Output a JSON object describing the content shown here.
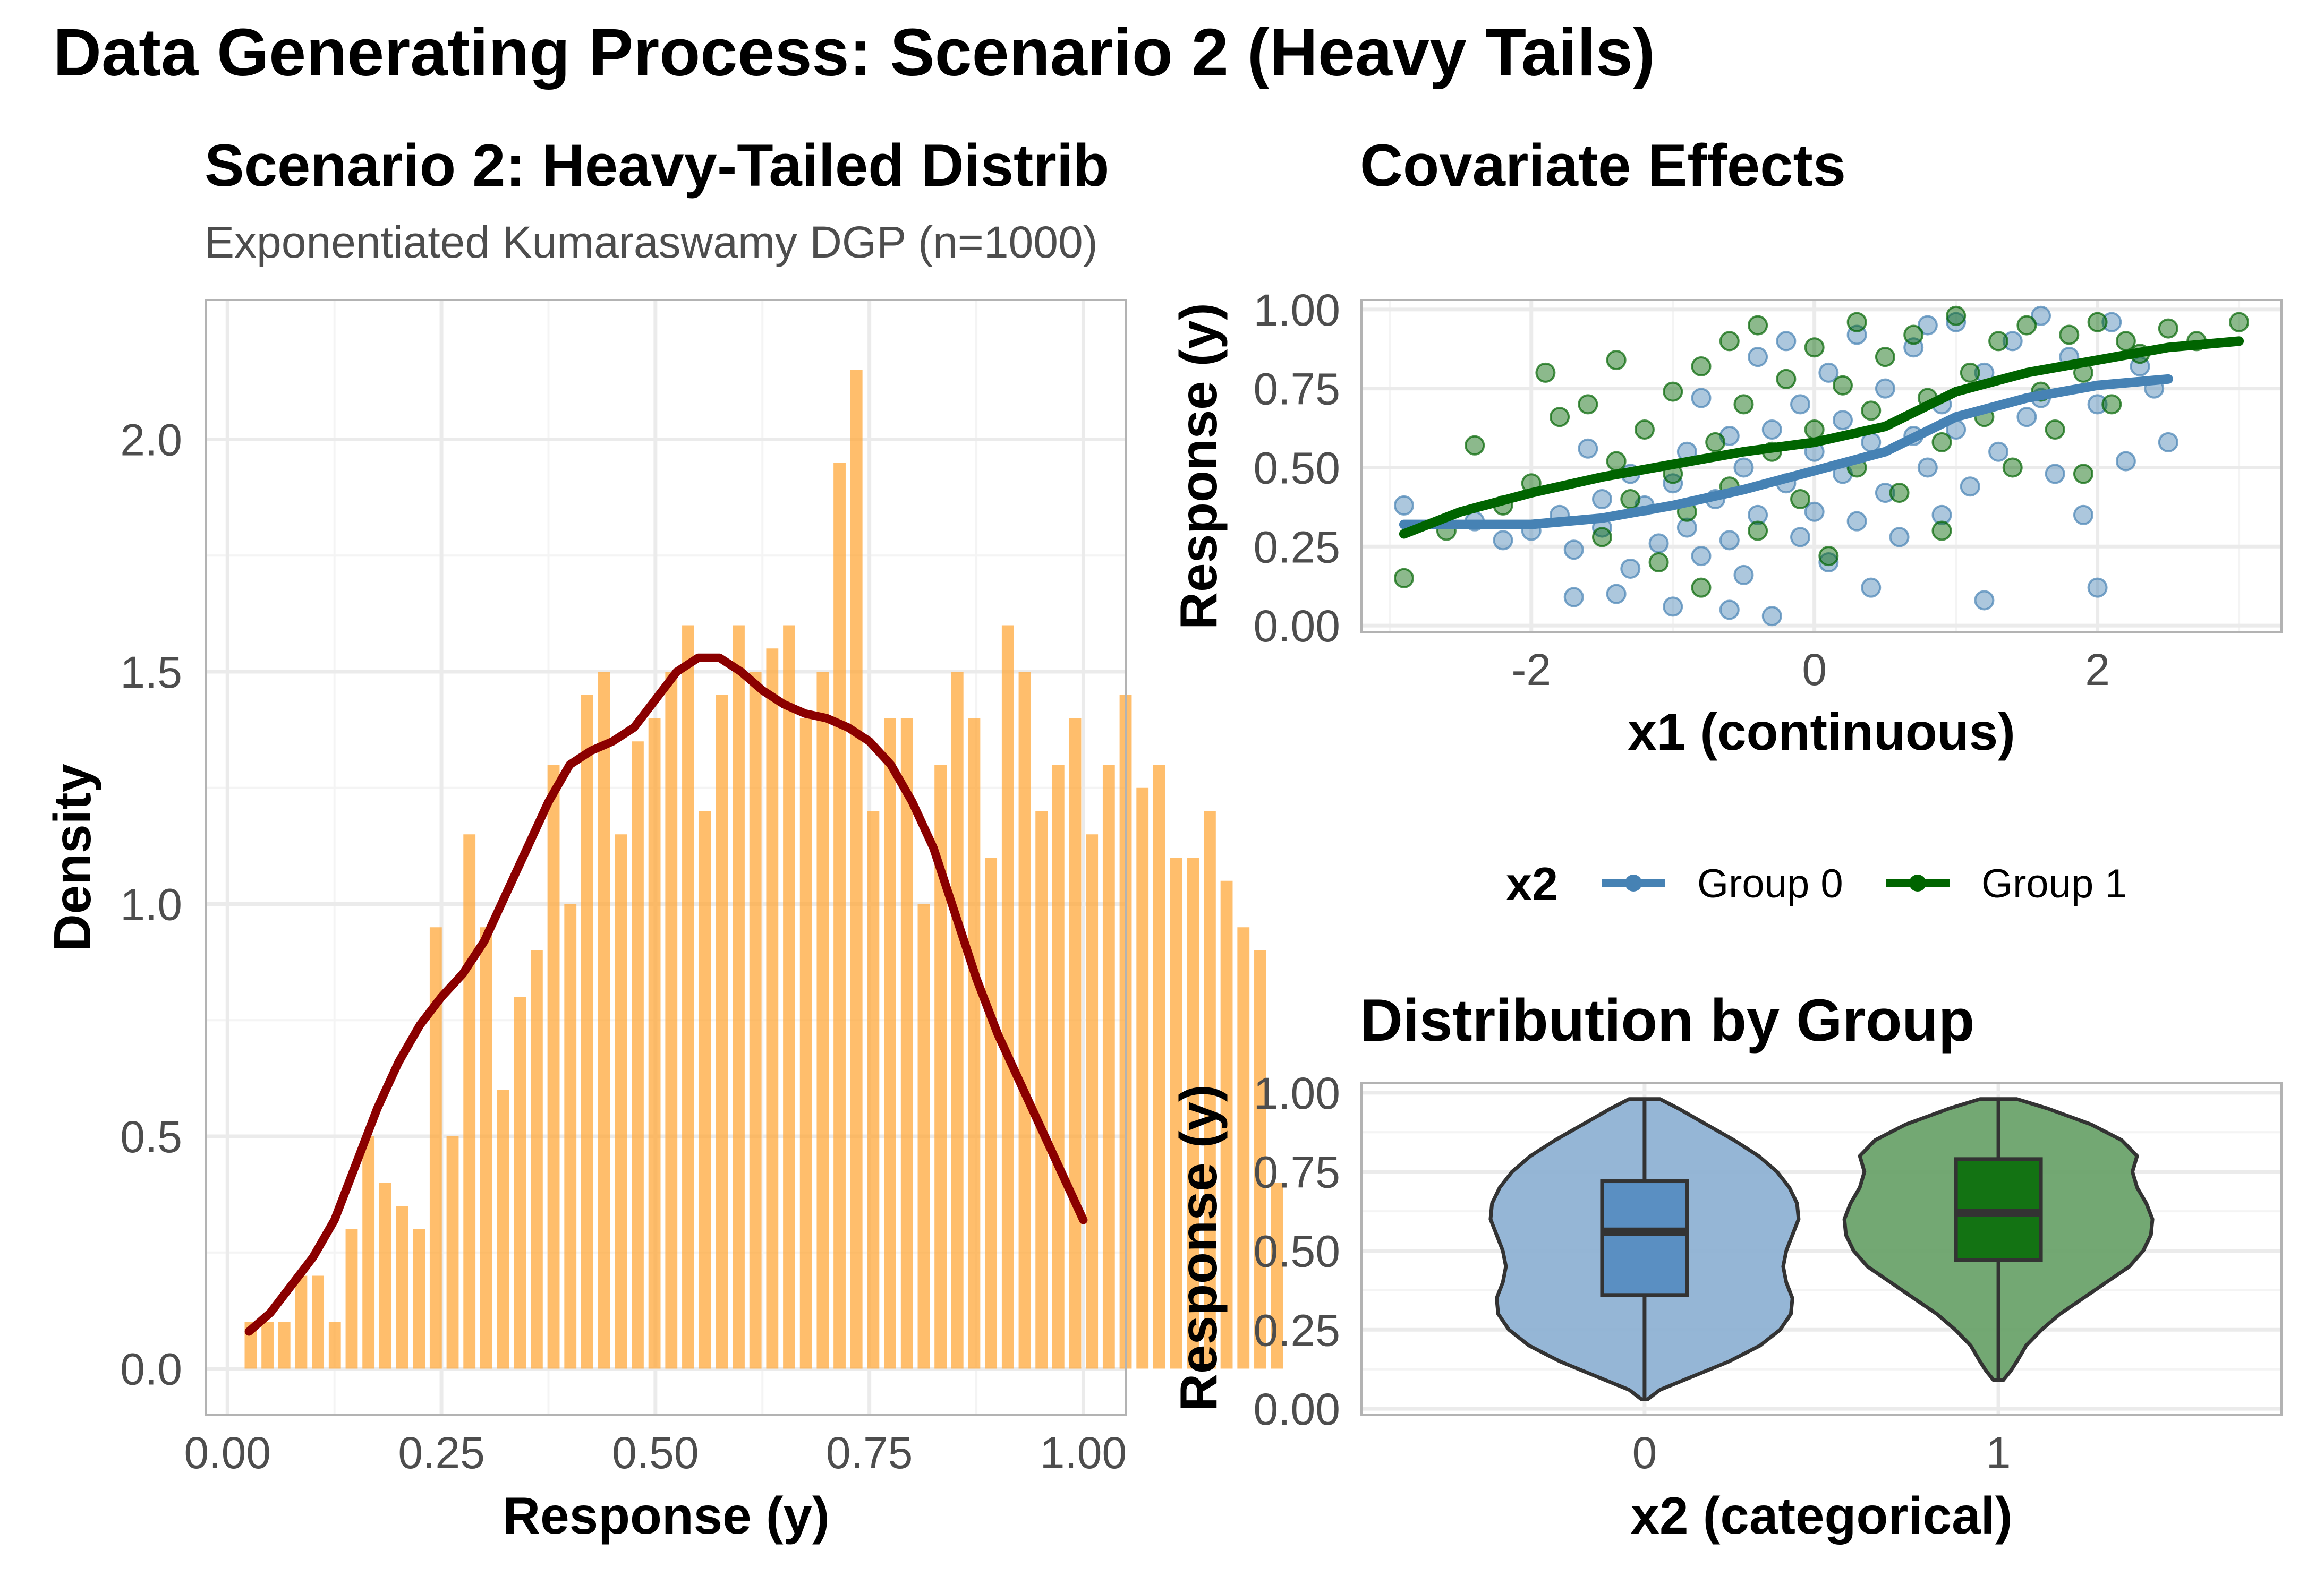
{
  "title": "Data Generating Process: Scenario 2 (Heavy Tails)",
  "chart_data": [
    {
      "type": "bar",
      "panel": "histogram",
      "title": "Scenario 2: Heavy-Tailed Distrib",
      "subtitle": "Exponentiated Kumaraswamy DGP (n=1000)",
      "xlabel": "Response (y)",
      "ylabel": "Density",
      "xlim": [
        -0.025,
        1.05
      ],
      "ylim": [
        -0.1,
        2.3
      ],
      "x_ticks": [
        0,
        0.25,
        0.5,
        0.75,
        1
      ],
      "x_tick_labels": [
        "0.00",
        "0.25",
        "0.50",
        "0.75",
        "1.00"
      ],
      "y_ticks": [
        0,
        0.5,
        1,
        1.5,
        2
      ],
      "y_tick_labels": [
        "0.0",
        "0.5",
        "1.0",
        "1.5",
        "2.0"
      ],
      "bar_color": "#ffa533",
      "curve_color": "#8b0000",
      "bins_start": 0.02,
      "bin_width": 0.01966,
      "values": [
        0.1,
        0.1,
        0.1,
        0.2,
        0.2,
        0.1,
        0.3,
        0.5,
        0.4,
        0.35,
        0.3,
        0.95,
        0.5,
        1.15,
        0.95,
        0.6,
        0.8,
        0.9,
        1.3,
        1.0,
        1.45,
        1.5,
        1.15,
        1.35,
        1.4,
        1.5,
        1.6,
        1.2,
        1.45,
        1.6,
        1.5,
        1.55,
        1.6,
        1.4,
        1.5,
        1.95,
        2.15,
        1.2,
        1.4,
        1.4,
        1.0,
        1.3,
        1.5,
        1.4,
        1.1,
        1.6,
        1.5,
        1.2,
        1.3,
        1.4,
        1.15,
        1.3,
        1.45,
        1.25,
        1.3,
        1.1,
        1.1,
        1.2,
        1.05,
        0.95,
        0.9,
        0.4
      ],
      "density_x": [
        0.025,
        0.05,
        0.075,
        0.1,
        0.125,
        0.15,
        0.175,
        0.2,
        0.225,
        0.25,
        0.275,
        0.3,
        0.325,
        0.35,
        0.375,
        0.4,
        0.425,
        0.45,
        0.475,
        0.5,
        0.525,
        0.55,
        0.575,
        0.6,
        0.625,
        0.65,
        0.675,
        0.7,
        0.725,
        0.75,
        0.775,
        0.8,
        0.825,
        0.85,
        0.875,
        0.9,
        0.925,
        0.95,
        0.975,
        1.0
      ],
      "density_y": [
        0.08,
        0.12,
        0.18,
        0.24,
        0.32,
        0.44,
        0.56,
        0.66,
        0.74,
        0.8,
        0.85,
        0.92,
        1.02,
        1.12,
        1.22,
        1.3,
        1.33,
        1.35,
        1.38,
        1.44,
        1.5,
        1.53,
        1.53,
        1.5,
        1.46,
        1.43,
        1.41,
        1.4,
        1.38,
        1.35,
        1.3,
        1.22,
        1.12,
        0.98,
        0.84,
        0.72,
        0.62,
        0.52,
        0.42,
        0.32
      ]
    },
    {
      "type": "scatter",
      "panel": "covariate-effects",
      "title": "Covariate Effects",
      "xlabel": "x1 (continuous)",
      "ylabel": "Response (y)",
      "xlim": [
        -3.2,
        3.3
      ],
      "ylim": [
        -0.02,
        1.03
      ],
      "x_ticks": [
        -2,
        0,
        2
      ],
      "x_tick_labels": [
        "-2",
        "0",
        "2"
      ],
      "y_ticks": [
        0,
        0.25,
        0.5,
        0.75,
        1
      ],
      "y_tick_labels": [
        "0.00",
        "0.25",
        "0.50",
        "0.75",
        "1.00"
      ],
      "legend": {
        "title": "x2",
        "position": "bottom"
      },
      "series": [
        {
          "name": "Group 0",
          "color": "#4682b4",
          "points": [
            [
              -2.9,
              0.38
            ],
            [
              -2.4,
              0.33
            ],
            [
              -2.2,
              0.27
            ],
            [
              -2.0,
              0.3
            ],
            [
              -1.8,
              0.35
            ],
            [
              -1.7,
              0.24
            ],
            [
              -1.7,
              0.09
            ],
            [
              -1.5,
              0.4
            ],
            [
              -1.5,
              0.31
            ],
            [
              -1.4,
              0.1
            ],
            [
              -1.3,
              0.18
            ],
            [
              -1.3,
              0.48
            ],
            [
              -1.2,
              0.38
            ],
            [
              -1.1,
              0.26
            ],
            [
              -1.0,
              0.45
            ],
            [
              -1.0,
              0.06
            ],
            [
              -0.9,
              0.55
            ],
            [
              -0.9,
              0.31
            ],
            [
              -0.8,
              0.72
            ],
            [
              -0.8,
              0.22
            ],
            [
              -0.7,
              0.4
            ],
            [
              -0.6,
              0.6
            ],
            [
              -0.6,
              0.27
            ],
            [
              -0.5,
              0.5
            ],
            [
              -0.5,
              0.16
            ],
            [
              -0.4,
              0.85
            ],
            [
              -0.4,
              0.35
            ],
            [
              -0.3,
              0.62
            ],
            [
              -0.3,
              0.03
            ],
            [
              -0.2,
              0.45
            ],
            [
              -0.2,
              0.9
            ],
            [
              -0.1,
              0.28
            ],
            [
              -0.1,
              0.7
            ],
            [
              0.0,
              0.55
            ],
            [
              0.0,
              0.36
            ],
            [
              0.1,
              0.8
            ],
            [
              0.1,
              0.2
            ],
            [
              0.2,
              0.48
            ],
            [
              0.2,
              0.65
            ],
            [
              0.3,
              0.92
            ],
            [
              0.3,
              0.33
            ],
            [
              0.4,
              0.58
            ],
            [
              0.5,
              0.42
            ],
            [
              0.5,
              0.75
            ],
            [
              0.6,
              0.28
            ],
            [
              0.7,
              0.6
            ],
            [
              0.7,
              0.88
            ],
            [
              0.8,
              0.5
            ],
            [
              0.9,
              0.7
            ],
            [
              0.9,
              0.35
            ],
            [
              1.0,
              0.96
            ],
            [
              1.0,
              0.62
            ],
            [
              1.1,
              0.44
            ],
            [
              1.2,
              0.8
            ],
            [
              1.2,
              0.08
            ],
            [
              1.3,
              0.55
            ],
            [
              1.4,
              0.9
            ],
            [
              1.5,
              0.66
            ],
            [
              1.6,
              0.72
            ],
            [
              1.7,
              0.48
            ],
            [
              1.8,
              0.85
            ],
            [
              1.9,
              0.35
            ],
            [
              2.0,
              0.12
            ],
            [
              2.0,
              0.7
            ],
            [
              2.1,
              0.96
            ],
            [
              2.2,
              0.52
            ],
            [
              2.3,
              0.82
            ],
            [
              2.4,
              0.75
            ],
            [
              2.5,
              0.58
            ],
            [
              -0.6,
              0.05
            ],
            [
              0.4,
              0.12
            ],
            [
              -1.6,
              0.56
            ],
            [
              0.8,
              0.95
            ],
            [
              1.6,
              0.98
            ]
          ]
        },
        {
          "name": "Group 1",
          "color": "#006400",
          "points": [
            [
              -2.9,
              0.15
            ],
            [
              -2.6,
              0.3
            ],
            [
              -2.4,
              0.57
            ],
            [
              -2.2,
              0.38
            ],
            [
              -2.0,
              0.45
            ],
            [
              -1.8,
              0.66
            ],
            [
              -1.6,
              0.7
            ],
            [
              -1.5,
              0.28
            ],
            [
              -1.4,
              0.52
            ],
            [
              -1.4,
              0.84
            ],
            [
              -1.3,
              0.4
            ],
            [
              -1.2,
              0.62
            ],
            [
              -1.1,
              0.2
            ],
            [
              -1.0,
              0.74
            ],
            [
              -1.0,
              0.48
            ],
            [
              -0.9,
              0.36
            ],
            [
              -0.8,
              0.82
            ],
            [
              -0.8,
              0.12
            ],
            [
              -0.7,
              0.58
            ],
            [
              -0.6,
              0.9
            ],
            [
              -0.6,
              0.44
            ],
            [
              -0.5,
              0.7
            ],
            [
              -0.4,
              0.3
            ],
            [
              -0.4,
              0.95
            ],
            [
              -0.3,
              0.55
            ],
            [
              -0.2,
              0.78
            ],
            [
              -0.1,
              0.4
            ],
            [
              0.0,
              0.88
            ],
            [
              0.0,
              0.62
            ],
            [
              0.1,
              0.22
            ],
            [
              0.2,
              0.76
            ],
            [
              0.3,
              0.5
            ],
            [
              0.3,
              0.96
            ],
            [
              0.4,
              0.68
            ],
            [
              0.5,
              0.85
            ],
            [
              0.6,
              0.42
            ],
            [
              0.7,
              0.92
            ],
            [
              0.8,
              0.72
            ],
            [
              0.9,
              0.58
            ],
            [
              1.0,
              0.98
            ],
            [
              1.1,
              0.8
            ],
            [
              1.2,
              0.66
            ],
            [
              1.3,
              0.9
            ],
            [
              1.4,
              0.5
            ],
            [
              1.5,
              0.95
            ],
            [
              1.6,
              0.74
            ],
            [
              1.7,
              0.62
            ],
            [
              1.8,
              0.92
            ],
            [
              1.9,
              0.8
            ],
            [
              2.0,
              0.96
            ],
            [
              2.1,
              0.7
            ],
            [
              2.2,
              0.9
            ],
            [
              2.3,
              0.86
            ],
            [
              2.5,
              0.94
            ],
            [
              2.7,
              0.9
            ],
            [
              3.0,
              0.96
            ],
            [
              1.9,
              0.48
            ],
            [
              -1.9,
              0.8
            ],
            [
              0.9,
              0.3
            ]
          ]
        }
      ],
      "trend_lines": [
        {
          "name": "Group 0",
          "x": [
            -2.9,
            -2.0,
            -1.5,
            -1.0,
            -0.5,
            0.0,
            0.5,
            1.0,
            1.5,
            2.0,
            2.5
          ],
          "y": [
            0.32,
            0.32,
            0.34,
            0.38,
            0.43,
            0.49,
            0.55,
            0.66,
            0.72,
            0.76,
            0.78
          ]
        },
        {
          "name": "Group 1",
          "x": [
            -2.9,
            -2.5,
            -2.0,
            -1.5,
            -1.0,
            -0.5,
            0.0,
            0.5,
            1.0,
            1.5,
            2.0,
            2.5,
            3.0
          ],
          "y": [
            0.29,
            0.36,
            0.42,
            0.47,
            0.51,
            0.55,
            0.58,
            0.63,
            0.74,
            0.8,
            0.84,
            0.88,
            0.9
          ]
        }
      ]
    },
    {
      "type": "violin",
      "panel": "distribution-by-group",
      "title": "Distribution by Group",
      "xlabel": "x2 (categorical)",
      "ylabel": "Response (y)",
      "ylim": [
        -0.02,
        1.03
      ],
      "categories": [
        "0",
        "1"
      ],
      "y_ticks": [
        0,
        0.25,
        0.5,
        0.75,
        1
      ],
      "y_tick_labels": [
        "0.00",
        "0.25",
        "0.50",
        "0.75",
        "1.00"
      ],
      "groups": [
        {
          "name": "0",
          "violin_color": "#8fb2d4",
          "box_color": "#5a8fc2",
          "quartiles": [
            0.36,
            0.56,
            0.72
          ],
          "range": [
            0.03,
            0.98
          ],
          "density_y": [
            0.03,
            0.06,
            0.1,
            0.15,
            0.2,
            0.25,
            0.3,
            0.35,
            0.4,
            0.45,
            0.5,
            0.55,
            0.6,
            0.65,
            0.7,
            0.75,
            0.8,
            0.85,
            0.9,
            0.95,
            0.98
          ],
          "density_w": [
            0.02,
            0.1,
            0.3,
            0.55,
            0.75,
            0.88,
            0.95,
            0.96,
            0.92,
            0.9,
            0.92,
            0.96,
            1.0,
            0.99,
            0.94,
            0.86,
            0.74,
            0.58,
            0.4,
            0.22,
            0.1
          ]
        },
        {
          "name": "1",
          "violin_color": "#6ba36b",
          "box_color": "#137313",
          "quartiles": [
            0.47,
            0.62,
            0.79
          ],
          "range": [
            0.09,
            0.98
          ],
          "density_y": [
            0.09,
            0.12,
            0.15,
            0.2,
            0.25,
            0.3,
            0.35,
            0.4,
            0.45,
            0.5,
            0.55,
            0.6,
            0.65,
            0.7,
            0.75,
            0.8,
            0.85,
            0.9,
            0.95,
            0.98
          ],
          "density_w": [
            0.03,
            0.08,
            0.12,
            0.18,
            0.28,
            0.4,
            0.55,
            0.7,
            0.85,
            0.94,
            0.99,
            1.0,
            0.96,
            0.9,
            0.87,
            0.9,
            0.8,
            0.6,
            0.32,
            0.12
          ]
        }
      ]
    }
  ]
}
